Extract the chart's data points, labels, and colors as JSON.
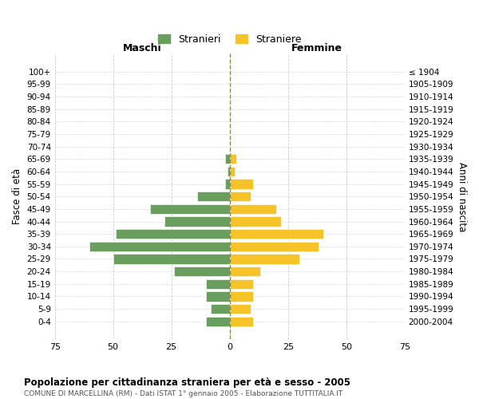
{
  "age_groups": [
    "0-4",
    "5-9",
    "10-14",
    "15-19",
    "20-24",
    "25-29",
    "30-34",
    "35-39",
    "40-44",
    "45-49",
    "50-54",
    "55-59",
    "60-64",
    "65-69",
    "70-74",
    "75-79",
    "80-84",
    "85-89",
    "90-94",
    "95-99",
    "100+"
  ],
  "birth_years": [
    "2000-2004",
    "1995-1999",
    "1990-1994",
    "1985-1989",
    "1980-1984",
    "1975-1979",
    "1970-1974",
    "1965-1969",
    "1960-1964",
    "1955-1959",
    "1950-1954",
    "1945-1949",
    "1940-1944",
    "1935-1939",
    "1930-1934",
    "1925-1929",
    "1920-1924",
    "1915-1919",
    "1910-1914",
    "1905-1909",
    "≤ 1904"
  ],
  "males": [
    10,
    8,
    10,
    10,
    24,
    50,
    60,
    49,
    28,
    34,
    14,
    2,
    1,
    2,
    0,
    0,
    0,
    0,
    0,
    0,
    0
  ],
  "females": [
    10,
    9,
    10,
    10,
    13,
    30,
    38,
    40,
    22,
    20,
    9,
    10,
    2,
    3,
    0,
    0,
    0,
    0,
    0,
    0,
    0
  ],
  "male_color": "#6a9e5f",
  "female_color": "#f5c327",
  "bar_edge_color": "white",
  "background_color": "#ffffff",
  "grid_color": "#cccccc",
  "title": "Popolazione per cittadinanza straniera per età e sesso - 2005",
  "subtitle": "COMUNE DI MARCELLINA (RM) - Dati ISTAT 1° gennaio 2005 - Elaborazione TUTTITALIA.IT",
  "xlabel_left": "Maschi",
  "xlabel_right": "Femmine",
  "ylabel_left": "Fasce di età",
  "ylabel_right": "Anni di nascita",
  "legend_male": "Stranieri",
  "legend_female": "Straniere",
  "xlim": 75,
  "dashed_line_color": "#8a8a4a"
}
